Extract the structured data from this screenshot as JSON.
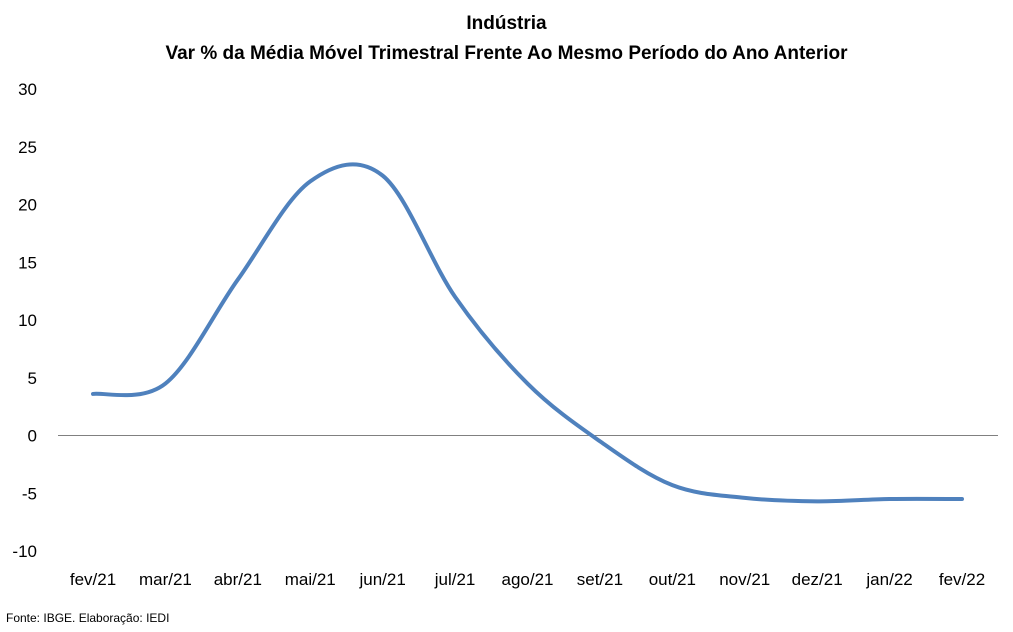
{
  "chart_data": {
    "type": "line",
    "title": "Indústria",
    "subtitle": "Var % da Média Móvel Trimestral Frente Ao Mesmo Período do Ano Anterior",
    "categories": [
      "fev/21",
      "mar/21",
      "abr/21",
      "mai/21",
      "jun/21",
      "jul/21",
      "ago/21",
      "set/21",
      "out/21",
      "nov/21",
      "dez/21",
      "jan/22",
      "fev/22"
    ],
    "series": [
      {
        "values": [
          3.6,
          4.5,
          13.5,
          22.0,
          22.5,
          12.0,
          4.5,
          -0.5,
          -4.3,
          -5.4,
          -5.7,
          -5.5,
          -5.5
        ],
        "color": "#4f81bd"
      }
    ],
    "ylim": [
      -10,
      30
    ],
    "yticks": [
      "30",
      "25",
      "20",
      "15",
      "10",
      "5",
      "0",
      "-5",
      "-10"
    ],
    "yticks_values": [
      30,
      25,
      20,
      15,
      10,
      5,
      0,
      -5,
      -10
    ],
    "grid": false,
    "legend": "none"
  },
  "source": "Fonte: IBGE. Elaboração: IEDI"
}
